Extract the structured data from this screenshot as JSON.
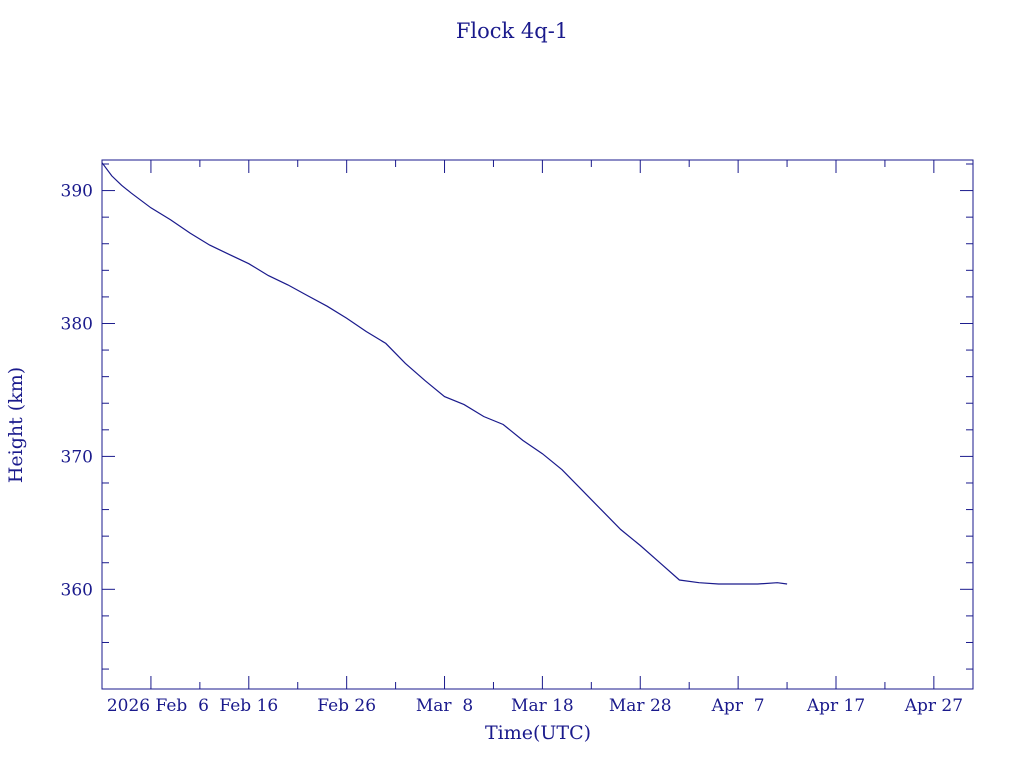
{
  "chart_data": {
    "type": "line",
    "title": "Flock 4q-1",
    "xlabel": "Time(UTC)",
    "ylabel": "Height (km)",
    "x_type": "date",
    "xlim": [
      "2026-02-01",
      "2026-05-01"
    ],
    "ylim": [
      352.5,
      392.3
    ],
    "x_ticks": [
      "2026-02-06",
      "2026-02-16",
      "2026-02-26",
      "2026-03-08",
      "2026-03-18",
      "2026-03-28",
      "2026-04-07",
      "2026-04-17",
      "2026-04-27"
    ],
    "x_tick_labels": [
      "2026 Feb  6",
      "Feb 16",
      "Feb 26",
      "Mar  8",
      "Mar 18",
      "Mar 28",
      "Apr  7",
      "Apr 17",
      "Apr 27"
    ],
    "y_ticks": [
      360,
      370,
      380,
      390
    ],
    "y_tick_labels": [
      "360",
      "370",
      "380",
      "390"
    ],
    "grid": false,
    "line_color": "#1a1a8c",
    "series": [
      {
        "x": [
          "2026-02-01",
          "2026-02-02",
          "2026-02-03",
          "2026-02-04",
          "2026-02-06",
          "2026-02-08",
          "2026-02-10",
          "2026-02-12",
          "2026-02-14",
          "2026-02-16",
          "2026-02-18",
          "2026-02-20",
          "2026-02-22",
          "2026-02-24",
          "2026-02-26",
          "2026-02-28",
          "2026-03-02",
          "2026-03-04",
          "2026-03-06",
          "2026-03-08",
          "2026-03-10",
          "2026-03-12",
          "2026-03-14",
          "2026-03-16",
          "2026-03-18",
          "2026-03-20",
          "2026-03-22",
          "2026-03-24",
          "2026-03-26",
          "2026-03-28",
          "2026-03-30",
          "2026-04-01",
          "2026-04-03",
          "2026-04-05",
          "2026-04-07",
          "2026-04-09",
          "2026-04-11",
          "2026-04-12"
        ],
        "y": [
          392.1,
          391.1,
          390.4,
          389.8,
          388.7,
          387.8,
          386.8,
          385.9,
          385.2,
          384.5,
          383.6,
          382.9,
          382.1,
          381.3,
          380.4,
          379.4,
          378.5,
          377.0,
          375.7,
          374.5,
          373.9,
          373.0,
          372.4,
          371.2,
          370.2,
          369.0,
          367.5,
          366.0,
          364.5,
          363.3,
          362.0,
          360.7,
          360.5,
          360.4,
          360.4,
          360.4,
          360.5,
          360.4
        ]
      }
    ]
  }
}
